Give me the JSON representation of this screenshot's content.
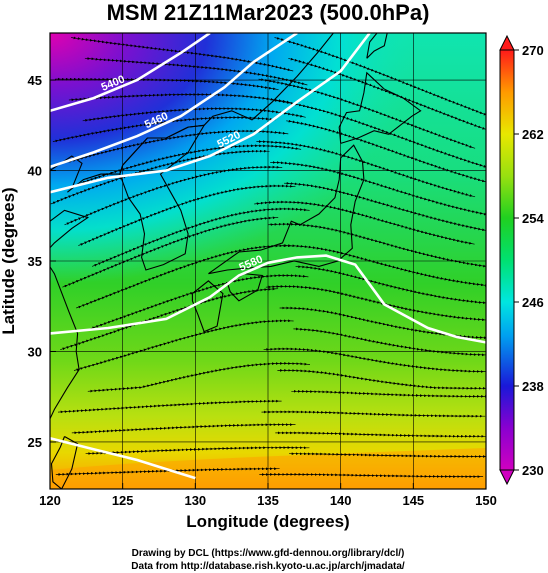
{
  "title": "MSM 21Z11Mar2023 (500.0hPa)",
  "xlabel": "Longitude (degrees)",
  "ylabel": "Latitude  (degrees)",
  "x_ticks": [
    {
      "label": "120",
      "value": 120
    },
    {
      "label": "125",
      "value": 125
    },
    {
      "label": "130",
      "value": 130
    },
    {
      "label": "135",
      "value": 135
    },
    {
      "label": "140",
      "value": 140
    },
    {
      "label": "145",
      "value": 145
    },
    {
      "label": "150",
      "value": 150
    }
  ],
  "y_ticks": [
    {
      "label": "25",
      "value": 25
    },
    {
      "label": "30",
      "value": 30
    },
    {
      "label": "35",
      "value": 35
    },
    {
      "label": "40",
      "value": 40
    },
    {
      "label": "45",
      "value": 45
    }
  ],
  "colorbar_ticks": [
    {
      "label": "270",
      "value": 270
    },
    {
      "label": "262",
      "value": 262
    },
    {
      "label": "254",
      "value": 254
    },
    {
      "label": "246",
      "value": 246
    },
    {
      "label": "238",
      "value": 238
    },
    {
      "label": "230",
      "value": 230
    }
  ],
  "contour_labels": [
    "5400",
    "5460",
    "5520",
    "5580"
  ],
  "credit_line1": "Drawing by DCL (https://www.gfd-dennou.org/library/dcl/)",
  "credit_line2": "Data from http://database.rish.kyoto-u.ac.jp/arch/jmadata/",
  "chart_data": {
    "type": "heatmap",
    "title": "MSM 21Z11Mar2023 (500.0hPa)",
    "xlabel": "Longitude (degrees)",
    "ylabel": "Latitude  (degrees)",
    "xlim": [
      120,
      150
    ],
    "ylim": [
      22.4,
      47.6
    ],
    "colorbar_range": [
      230,
      270
    ],
    "colorbar_extends": "both",
    "colors": {
      "230": "#d000c0",
      "234": "#8a00d0",
      "238": "#1a18d8",
      "242": "#00a0f0",
      "246": "#00e6e0",
      "250": "#00e070",
      "254": "#20d020",
      "258": "#98e010",
      "262": "#e8e800",
      "266": "#ff9a00",
      "270": "#ff1a1a"
    },
    "field_samples": [
      {
        "lon": 121,
        "lat": 47,
        "value": 232
      },
      {
        "lon": 125,
        "lat": 47,
        "value": 237
      },
      {
        "lon": 130,
        "lat": 47,
        "value": 244
      },
      {
        "lon": 121,
        "lat": 43,
        "value": 240
      },
      {
        "lon": 126,
        "lat": 42,
        "value": 245
      },
      {
        "lon": 140,
        "lat": 45,
        "value": 253
      },
      {
        "lon": 145,
        "lat": 40,
        "value": 254
      },
      {
        "lon": 135,
        "lat": 33,
        "value": 254
      },
      {
        "lon": 140,
        "lat": 27,
        "value": 257
      },
      {
        "lon": 125,
        "lat": 27,
        "value": 259
      },
      {
        "lon": 130,
        "lat": 24,
        "value": 263
      },
      {
        "lon": 145,
        "lat": 23,
        "value": 266
      }
    ],
    "contours": [
      {
        "label": "5400",
        "points": [
          [
            120,
            43.3
          ],
          [
            123,
            44.0
          ],
          [
            126,
            45.0
          ],
          [
            129,
            46.5
          ],
          [
            131,
            47.6
          ]
        ]
      },
      {
        "label": "5460",
        "points": [
          [
            120,
            40.2
          ],
          [
            123,
            41.0
          ],
          [
            126,
            41.9
          ],
          [
            129,
            43.0
          ],
          [
            132,
            44.6
          ],
          [
            134,
            46.0
          ],
          [
            137,
            47.6
          ]
        ]
      },
      {
        "label": "5520",
        "points": [
          [
            120,
            38.8
          ],
          [
            124,
            39.6
          ],
          [
            128,
            40.0
          ],
          [
            131,
            40.8
          ],
          [
            134,
            42.0
          ],
          [
            137,
            43.8
          ],
          [
            140,
            45.5
          ],
          [
            142,
            47.6
          ]
        ]
      },
      {
        "label": "5580",
        "points": [
          [
            120,
            31.0
          ],
          [
            124,
            31.3
          ],
          [
            128,
            31.8
          ],
          [
            131,
            33.0
          ],
          [
            133,
            34.2
          ],
          [
            135,
            34.9
          ],
          [
            137,
            35.2
          ],
          [
            139,
            35.3
          ],
          [
            141,
            34.8
          ],
          [
            143,
            32.6
          ],
          [
            146,
            31.3
          ],
          [
            148,
            30.8
          ],
          [
            150,
            30.5
          ]
        ]
      },
      {
        "label": "",
        "points": [
          [
            120,
            25.2
          ],
          [
            123,
            24.6
          ],
          [
            126,
            24.0
          ],
          [
            128,
            23.5
          ],
          [
            130,
            23.0
          ]
        ]
      }
    ],
    "land_outlines": "Japan, Korean Peninsula, China coast, Taiwan, Sakhalin",
    "grid": true
  }
}
